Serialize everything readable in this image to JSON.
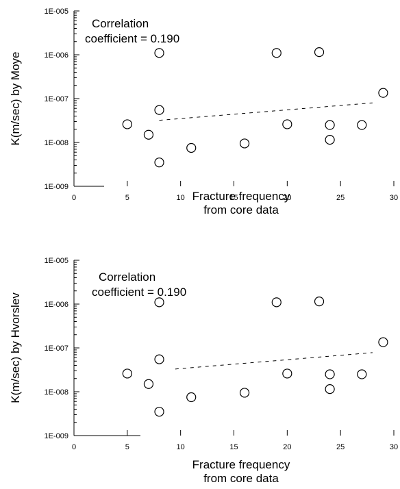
{
  "chart_data": [
    {
      "type": "scatter",
      "xlabel": [
        "Fracture frequency",
        "from  core data"
      ],
      "ylabel": "K(m/sec) by Moye",
      "yscale": "log",
      "xlim": [
        0,
        30
      ],
      "ylim": [
        1e-09,
        1e-05
      ],
      "x_ticks": [
        "0",
        "5",
        "10",
        "15",
        "20",
        "25",
        "30"
      ],
      "y_ticks": [
        "1E-009",
        "1E-008",
        "1E-007",
        "1E-006",
        "1E-005"
      ],
      "annotation": [
        "Correlation",
        "coefficient = 0.190"
      ],
      "points": [
        {
          "x": 5,
          "y": 2.6e-08
        },
        {
          "x": 7,
          "y": 1.5e-08
        },
        {
          "x": 8,
          "y": 1.1e-06
        },
        {
          "x": 8,
          "y": 5.5e-08
        },
        {
          "x": 8,
          "y": 3.5e-09
        },
        {
          "x": 11,
          "y": 7.5e-09
        },
        {
          "x": 16,
          "y": 9.5e-09
        },
        {
          "x": 19,
          "y": 1.1e-06
        },
        {
          "x": 20,
          "y": 2.6e-08
        },
        {
          "x": 23,
          "y": 1.15e-06
        },
        {
          "x": 24,
          "y": 2.5e-08
        },
        {
          "x": 24,
          "y": 1.15e-08
        },
        {
          "x": 27,
          "y": 2.5e-08
        },
        {
          "x": 29,
          "y": 1.35e-07
        }
      ],
      "trend": {
        "x": [
          8,
          28
        ],
        "y": [
          3.2e-08,
          8e-08
        ]
      }
    },
    {
      "type": "scatter",
      "xlabel": [
        "Fracture frequency",
        "from  core data"
      ],
      "ylabel": "K(m/sec) by Hvorslev",
      "yscale": "log",
      "xlim": [
        0,
        30
      ],
      "ylim": [
        1e-09,
        1e-05
      ],
      "x_ticks": [
        "0",
        "5",
        "10",
        "15",
        "20",
        "25",
        "30"
      ],
      "y_ticks": [
        "1E-009",
        "1E-008",
        "1E-007",
        "1E-006",
        "1E-005"
      ],
      "annotation": [
        "Correlation",
        "coefficient = 0.190"
      ],
      "points": [
        {
          "x": 5,
          "y": 2.6e-08
        },
        {
          "x": 7,
          "y": 1.5e-08
        },
        {
          "x": 8,
          "y": 1.1e-06
        },
        {
          "x": 8,
          "y": 5.5e-08
        },
        {
          "x": 8,
          "y": 3.5e-09
        },
        {
          "x": 11,
          "y": 7.5e-09
        },
        {
          "x": 16,
          "y": 9.5e-09
        },
        {
          "x": 19,
          "y": 1.1e-06
        },
        {
          "x": 20,
          "y": 2.6e-08
        },
        {
          "x": 23,
          "y": 1.15e-06
        },
        {
          "x": 24,
          "y": 2.5e-08
        },
        {
          "x": 24,
          "y": 1.15e-08
        },
        {
          "x": 27,
          "y": 2.5e-08
        },
        {
          "x": 29,
          "y": 1.35e-07
        }
      ],
      "trend": {
        "x": [
          9.5,
          28
        ],
        "y": [
          3.3e-08,
          7.8e-08
        ]
      }
    }
  ]
}
